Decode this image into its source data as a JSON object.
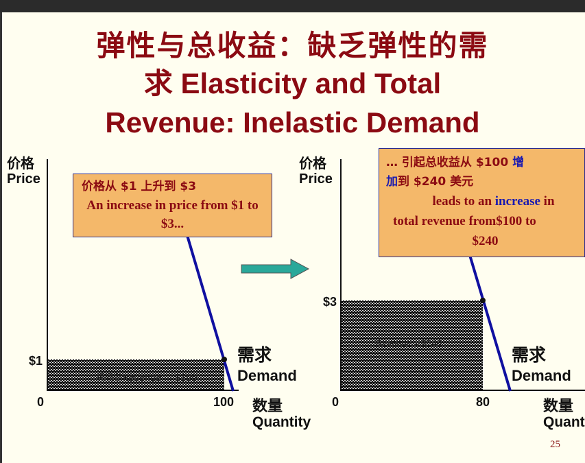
{
  "slide": {
    "title_line1": "弹性与总收益：缺乏弹性的需",
    "title_line2": "求 Elasticity and Total",
    "title_line3": "Revenue: Inelastic Demand",
    "page_number": "25"
  },
  "left_panel": {
    "y_axis_zh": "价格",
    "y_axis_en": "Price",
    "price_label": "$1",
    "origin": "0",
    "x_tick": "100",
    "x_axis_zh": "数量",
    "x_axis_en": "Quantity",
    "demand_zh": "需求",
    "demand_en": "Demand",
    "revenue_label": "总收益Revenue = $100",
    "callout_zh": "价格从 $1 上升到 $3",
    "callout_en": "An increase in price from $1 to $3..."
  },
  "right_panel": {
    "y_axis_zh": "价格",
    "y_axis_en": "Price",
    "price_label": "$3",
    "origin": "0",
    "x_tick": "80",
    "x_axis_zh": "数量",
    "x_axis_en": "Quanti",
    "demand_zh": "需求",
    "demand_en": "Demand",
    "revenue_label": "Revenue = $240",
    "callout_zh_a": "… 引起总收益从 $100 ",
    "callout_zh_b": "增",
    "callout_zh_c": "加",
    "callout_zh_d": "到 $240 美元",
    "callout_en_a": "leads to an ",
    "callout_en_b": "increase",
    "callout_en_c": " in",
    "callout_en_d": "total revenue from$100 to",
    "callout_en_e": "$240"
  },
  "colors": {
    "title": "#8b0a12",
    "demand_line": "#1010a0",
    "callout_bg": "#f4b86a",
    "arrow": "#2aa89a"
  }
}
